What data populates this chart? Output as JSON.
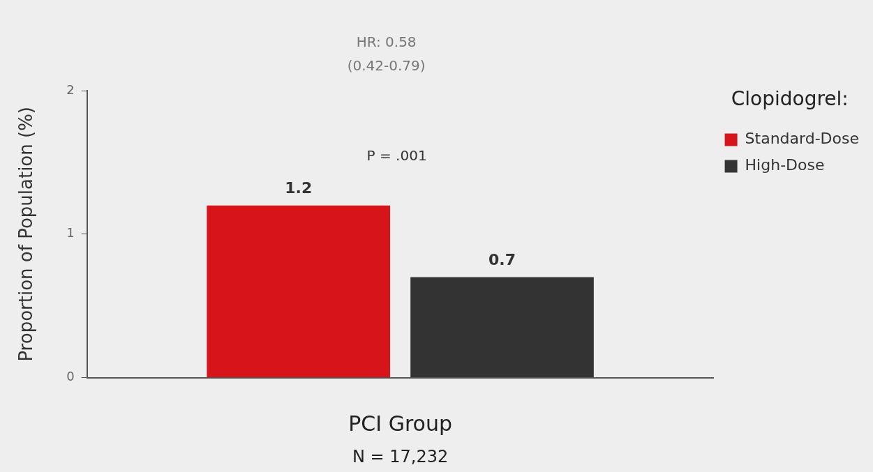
{
  "chart_data": {
    "type": "bar",
    "ylabel": "Proportion of Population (%)",
    "xlabel": "PCI Group",
    "categories": [
      null
    ],
    "series": [
      {
        "name": "Standard-Dose",
        "color": "#d7141a",
        "values": [
          1.2
        ]
      },
      {
        "name": "High-Dose",
        "color": "#333333",
        "values": [
          0.7
        ]
      }
    ],
    "ylim": [
      0,
      2
    ],
    "yticks": [
      0,
      1,
      2
    ],
    "grid": false,
    "legend": "top right",
    "legend_title": "Clopidogrel:",
    "data_labels": true,
    "annotations": [
      "HR: 0.58",
      "(0.42-0.79)",
      "P = .001",
      "N = 17,232"
    ]
  }
}
